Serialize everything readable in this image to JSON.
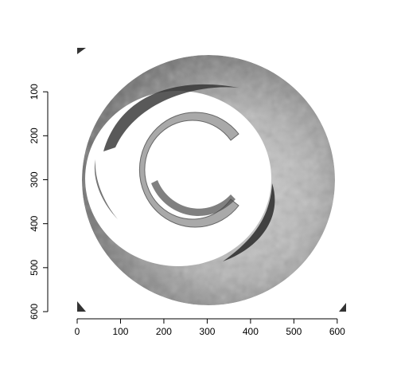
{
  "chart_data": {
    "type": "heatmap",
    "title": "",
    "xlabel": "",
    "ylabel": "",
    "xlim": [
      0,
      615
    ],
    "ylim": [
      600,
      0
    ],
    "x_ticks": [
      0,
      100,
      200,
      300,
      400,
      500,
      600
    ],
    "y_ticks": [
      100,
      200,
      300,
      400,
      500,
      600
    ],
    "x_tick_labels": [
      "0",
      "100",
      "200",
      "300",
      "400",
      "500",
      "600"
    ],
    "y_tick_labels": [
      "100",
      "200",
      "300",
      "400",
      "500",
      "600"
    ],
    "colormap": "grayscale",
    "image_description_values": {
      "outer_ring_center": [
        315,
        322
      ],
      "outer_ring_radius": 290,
      "inner_hole_radius": 140,
      "inner_disk_center": [
        240,
        290
      ]
    },
    "colors": {
      "ring_light": "#c8c8c8",
      "ring_mid": "#9a9a9a",
      "ring_dark": "#2b2b2b",
      "background": "#ffffff"
    }
  }
}
